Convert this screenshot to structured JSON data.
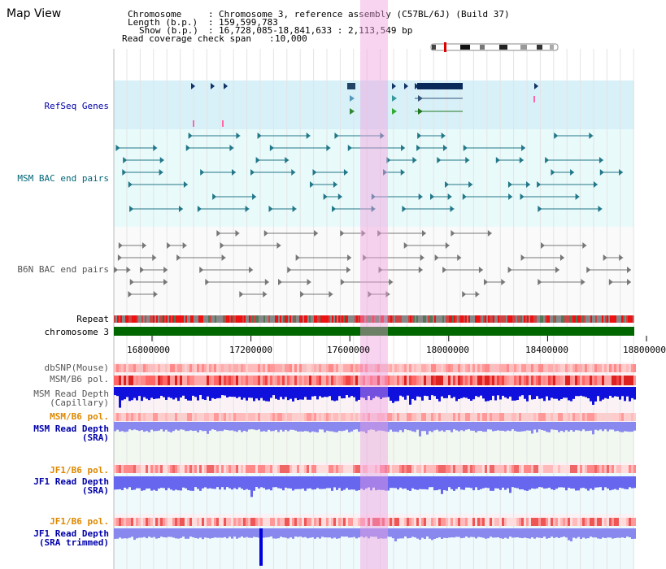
{
  "header": {
    "title": "Map View",
    "chromosome_label": "Chromosome",
    "chromosome_value": "Chromosome 3, reference assembly (C57BL/6J) (Build 37)",
    "length_label": "Length (b.p.)",
    "length_value": "159,599,783",
    "show_label": "Show (b.p.)",
    "show_value": "16,728,085-18,841,633 : 2,113,549 bp",
    "coverage_label": "Read coverage check span",
    "coverage_value": "10,000"
  },
  "tracks": {
    "refseq": "RefSeq Genes",
    "msm_bac": "MSM BAC end pairs",
    "b6n_bac": "B6N BAC end pairs",
    "repeat": "Repeat",
    "chromosome": "chromosome 3",
    "dbsnp": "dbSNP(Mouse)",
    "msm_b6_pol_1": "MSM/B6 pol.",
    "msm_depth_cap_1": "MSM Read Depth",
    "msm_depth_cap_2": "(Capillary)",
    "msm_b6_pol_2": "MSM/B6 pol.",
    "msm_depth_sra_1": "MSM Read Depth",
    "msm_depth_sra_2": "(SRA)",
    "jf1_b6_pol_1": "JF1/B6 pol.",
    "jf1_depth_sra_1": "JF1 Read Depth",
    "jf1_depth_sra_2": "(SRA)",
    "jf1_b6_pol_2": "JF1/B6 pol.",
    "jf1_depth_trim_1": "JF1 Read Depth",
    "jf1_depth_trim_2": "(SRA trimmed)"
  },
  "axis": {
    "ticks": [
      "16800000",
      "17200000",
      "17600000",
      "18000000",
      "18400000",
      "18800000"
    ]
  },
  "colors": {
    "refseq_label": "#0000aa",
    "msm_label": "#006677",
    "b6n_label": "#555555",
    "orange_label": "#dd8800",
    "blue_label": "#0000aa",
    "highlight": "#f5d0f0",
    "chromosome_bar": "#006600"
  }
}
